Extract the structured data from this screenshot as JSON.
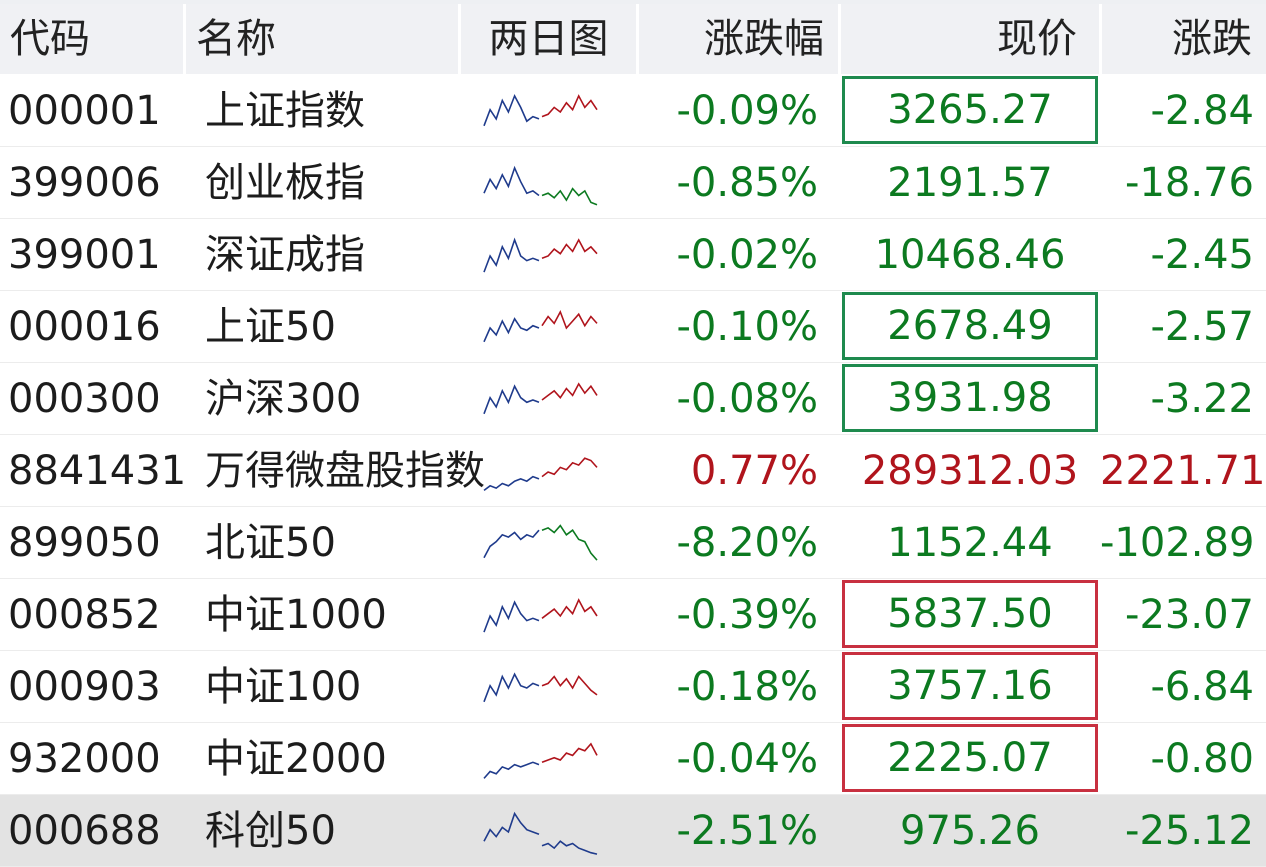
{
  "header": {
    "code": "代码",
    "name": "名称",
    "chart": "两日图",
    "pct": "涨跌幅",
    "price": "现价",
    "change": "涨跌"
  },
  "colors": {
    "down": "#0c7a20",
    "up": "#b0141c",
    "chart_blue": "#1f3b8c",
    "chart_red": "#b0141c",
    "chart_green": "#0c7a20"
  },
  "rows": [
    {
      "code": "000001",
      "name": "上证指数",
      "pct": "-0.09%",
      "price": "3265.27",
      "change": "-2.84",
      "dir": "down",
      "box": "green",
      "spark": {
        "day1": [
          0.2,
          0.55,
          0.35,
          0.75,
          0.5,
          0.85,
          0.6,
          0.3,
          0.4,
          0.35
        ],
        "day2": [
          0.4,
          0.45,
          0.6,
          0.5,
          0.7,
          0.55,
          0.85,
          0.6,
          0.75,
          0.55
        ],
        "day2color": "red"
      }
    },
    {
      "code": "399006",
      "name": "创业板指",
      "pct": "-0.85%",
      "price": "2191.57",
      "change": "-18.76",
      "dir": "down",
      "box": "",
      "spark": {
        "day1": [
          0.3,
          0.6,
          0.4,
          0.7,
          0.45,
          0.85,
          0.55,
          0.3,
          0.35,
          0.25
        ],
        "day2": [
          0.25,
          0.3,
          0.2,
          0.35,
          0.15,
          0.4,
          0.25,
          0.35,
          0.1,
          0.05
        ],
        "day2color": "green"
      }
    },
    {
      "code": "399001",
      "name": "深证成指",
      "pct": "-0.02%",
      "price": "10468.46",
      "change": "-2.45",
      "dir": "down",
      "box": "",
      "spark": {
        "day1": [
          0.15,
          0.5,
          0.3,
          0.7,
          0.45,
          0.85,
          0.5,
          0.4,
          0.45,
          0.4
        ],
        "day2": [
          0.45,
          0.5,
          0.65,
          0.55,
          0.75,
          0.6,
          0.85,
          0.6,
          0.7,
          0.55
        ],
        "day2color": "red"
      }
    },
    {
      "code": "000016",
      "name": "上证50",
      "pct": "-0.10%",
      "price": "2678.49",
      "change": "-2.57",
      "dir": "down",
      "box": "green",
      "spark": {
        "day1": [
          0.2,
          0.5,
          0.35,
          0.65,
          0.4,
          0.7,
          0.5,
          0.45,
          0.55,
          0.5
        ],
        "day2": [
          0.55,
          0.75,
          0.6,
          0.85,
          0.5,
          0.65,
          0.8,
          0.55,
          0.75,
          0.6
        ],
        "day2color": "red"
      }
    },
    {
      "code": "000300",
      "name": "沪深300",
      "pct": "-0.08%",
      "price": "3931.98",
      "change": "-3.22",
      "dir": "down",
      "box": "green",
      "spark": {
        "day1": [
          0.2,
          0.55,
          0.35,
          0.7,
          0.45,
          0.8,
          0.55,
          0.45,
          0.5,
          0.45
        ],
        "day2": [
          0.5,
          0.6,
          0.7,
          0.55,
          0.75,
          0.6,
          0.85,
          0.65,
          0.8,
          0.6
        ],
        "day2color": "red"
      }
    },
    {
      "code": "8841431",
      "name": "万得微盘股指数",
      "pct": "0.77%",
      "price": "289312.03",
      "change": "2221.71",
      "dir": "up",
      "box": "",
      "spark": {
        "day1": [
          0.1,
          0.2,
          0.15,
          0.25,
          0.2,
          0.3,
          0.35,
          0.3,
          0.4,
          0.35
        ],
        "day2": [
          0.4,
          0.5,
          0.45,
          0.6,
          0.55,
          0.7,
          0.65,
          0.8,
          0.75,
          0.6
        ],
        "day2color": "red"
      }
    },
    {
      "code": "899050",
      "name": "北证50",
      "pct": "-8.20%",
      "price": "1152.44",
      "change": "-102.89",
      "dir": "down",
      "box": "",
      "spark": {
        "day1": [
          0.2,
          0.45,
          0.55,
          0.7,
          0.65,
          0.75,
          0.6,
          0.7,
          0.65,
          0.8
        ],
        "day2": [
          0.8,
          0.85,
          0.75,
          0.9,
          0.7,
          0.8,
          0.6,
          0.55,
          0.3,
          0.15
        ],
        "day2color": "green"
      }
    },
    {
      "code": "000852",
      "name": "中证1000",
      "pct": "-0.39%",
      "price": "5837.50",
      "change": "-23.07",
      "dir": "down",
      "box": "red",
      "spark": {
        "day1": [
          0.15,
          0.5,
          0.3,
          0.7,
          0.45,
          0.8,
          0.55,
          0.4,
          0.45,
          0.4
        ],
        "day2": [
          0.45,
          0.55,
          0.65,
          0.5,
          0.7,
          0.55,
          0.85,
          0.6,
          0.7,
          0.5
        ],
        "day2color": "red"
      }
    },
    {
      "code": "000903",
      "name": "中证100",
      "pct": "-0.18%",
      "price": "3757.16",
      "change": "-6.84",
      "dir": "down",
      "box": "red",
      "spark": {
        "day1": [
          0.2,
          0.55,
          0.35,
          0.75,
          0.5,
          0.8,
          0.55,
          0.5,
          0.6,
          0.55
        ],
        "day2": [
          0.55,
          0.6,
          0.75,
          0.55,
          0.7,
          0.5,
          0.75,
          0.6,
          0.45,
          0.35
        ],
        "day2color": "red"
      }
    },
    {
      "code": "932000",
      "name": "中证2000",
      "pct": "-0.04%",
      "price": "2225.07",
      "change": "-0.80",
      "dir": "down",
      "box": "red",
      "spark": {
        "day1": [
          0.1,
          0.25,
          0.2,
          0.35,
          0.3,
          0.4,
          0.35,
          0.4,
          0.45,
          0.4
        ],
        "day2": [
          0.45,
          0.5,
          0.55,
          0.5,
          0.65,
          0.6,
          0.75,
          0.7,
          0.85,
          0.6
        ],
        "day2color": "red"
      }
    },
    {
      "code": "000688",
      "name": "科创50",
      "pct": "-2.51%",
      "price": "975.26",
      "change": "-25.12",
      "dir": "down",
      "box": "",
      "spark": {
        "day1": [
          0.3,
          0.55,
          0.4,
          0.6,
          0.5,
          0.9,
          0.7,
          0.55,
          0.5,
          0.45
        ],
        "day2": [
          0.2,
          0.25,
          0.15,
          0.3,
          0.2,
          0.25,
          0.15,
          0.1,
          0.05,
          0.02
        ],
        "day2color": "blue"
      },
      "selected": true
    }
  ]
}
